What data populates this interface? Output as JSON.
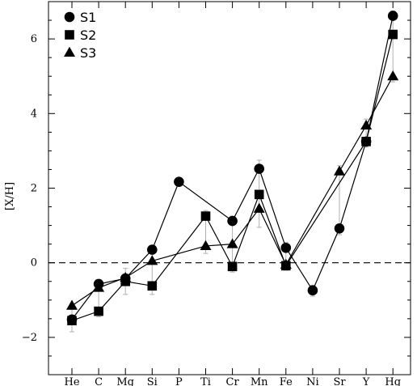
{
  "chart_data": {
    "type": "line",
    "title": "",
    "xlabel": "",
    "ylabel": "[X/H]",
    "categories": [
      "He",
      "C",
      "Mg",
      "Si",
      "P",
      "Ti",
      "Cr",
      "Mn",
      "Fe",
      "Ni",
      "Sr",
      "Y",
      "Hg"
    ],
    "ylim": [
      -3,
      7
    ],
    "yticks": [
      -2,
      0,
      2,
      4,
      6
    ],
    "y_tick_labels": [
      "−2",
      "0",
      "2",
      "4",
      "6"
    ],
    "reference_line": 0,
    "legend_position": "top-left",
    "series": [
      {
        "name": "S1",
        "marker": "circle",
        "points": [
          [
            "He",
            -1.52
          ],
          [
            "C",
            -0.57
          ],
          [
            "Mg",
            -0.42
          ],
          [
            "Si",
            0.35
          ],
          [
            "P",
            2.17
          ],
          [
            "Cr",
            1.12
          ],
          [
            "Mn",
            2.52
          ],
          [
            "Fe",
            0.4
          ],
          [
            "Ni",
            -0.74
          ],
          [
            "Sr",
            0.92
          ],
          [
            "Y",
            3.25
          ],
          [
            "Hg",
            6.62
          ]
        ]
      },
      {
        "name": "S2",
        "marker": "square",
        "points": [
          [
            "He",
            -1.55
          ],
          [
            "C",
            -1.3
          ],
          [
            "Mg",
            -0.5
          ],
          [
            "Si",
            -0.62
          ],
          [
            "Ti",
            1.25
          ],
          [
            "Cr",
            -0.1
          ],
          [
            "Mn",
            1.83
          ],
          [
            "Fe",
            -0.08
          ],
          [
            "Y",
            3.25
          ],
          [
            "Hg",
            6.12
          ]
        ]
      },
      {
        "name": "S3",
        "marker": "triangle",
        "points": [
          [
            "He",
            -1.15
          ],
          [
            "C",
            -0.67
          ],
          [
            "Mg",
            -0.4
          ],
          [
            "Si",
            0.05
          ],
          [
            "Ti",
            0.45
          ],
          [
            "Cr",
            0.5
          ],
          [
            "Mn",
            1.45
          ],
          [
            "Fe",
            -0.05
          ],
          [
            "Sr",
            2.45
          ],
          [
            "Y",
            3.68
          ],
          [
            "Hg",
            5.0
          ]
        ]
      }
    ],
    "error_bars": [
      {
        "category": "He",
        "low": -1.85,
        "high": -1.25
      },
      {
        "category": "C",
        "low": -1.45,
        "high": -0.45
      },
      {
        "category": "Mg",
        "low": -0.85,
        "high": -0.15
      },
      {
        "category": "Si",
        "low": -0.85,
        "high": 0.45
      },
      {
        "category": "Ti",
        "low": 0.25,
        "high": 1.4
      },
      {
        "category": "Cr",
        "low": -0.25,
        "high": 1.25
      },
      {
        "category": "Mn",
        "low": 0.95,
        "high": 2.75
      },
      {
        "category": "Fe",
        "low": -0.2,
        "high": 0.55
      },
      {
        "category": "Ni",
        "low": -0.9,
        "high": -0.6
      },
      {
        "category": "Sr",
        "low": 0.75,
        "high": 2.6
      },
      {
        "category": "Y",
        "low": 3.1,
        "high": 3.85
      },
      {
        "category": "Hg",
        "low": 4.85,
        "high": 6.75
      }
    ]
  }
}
